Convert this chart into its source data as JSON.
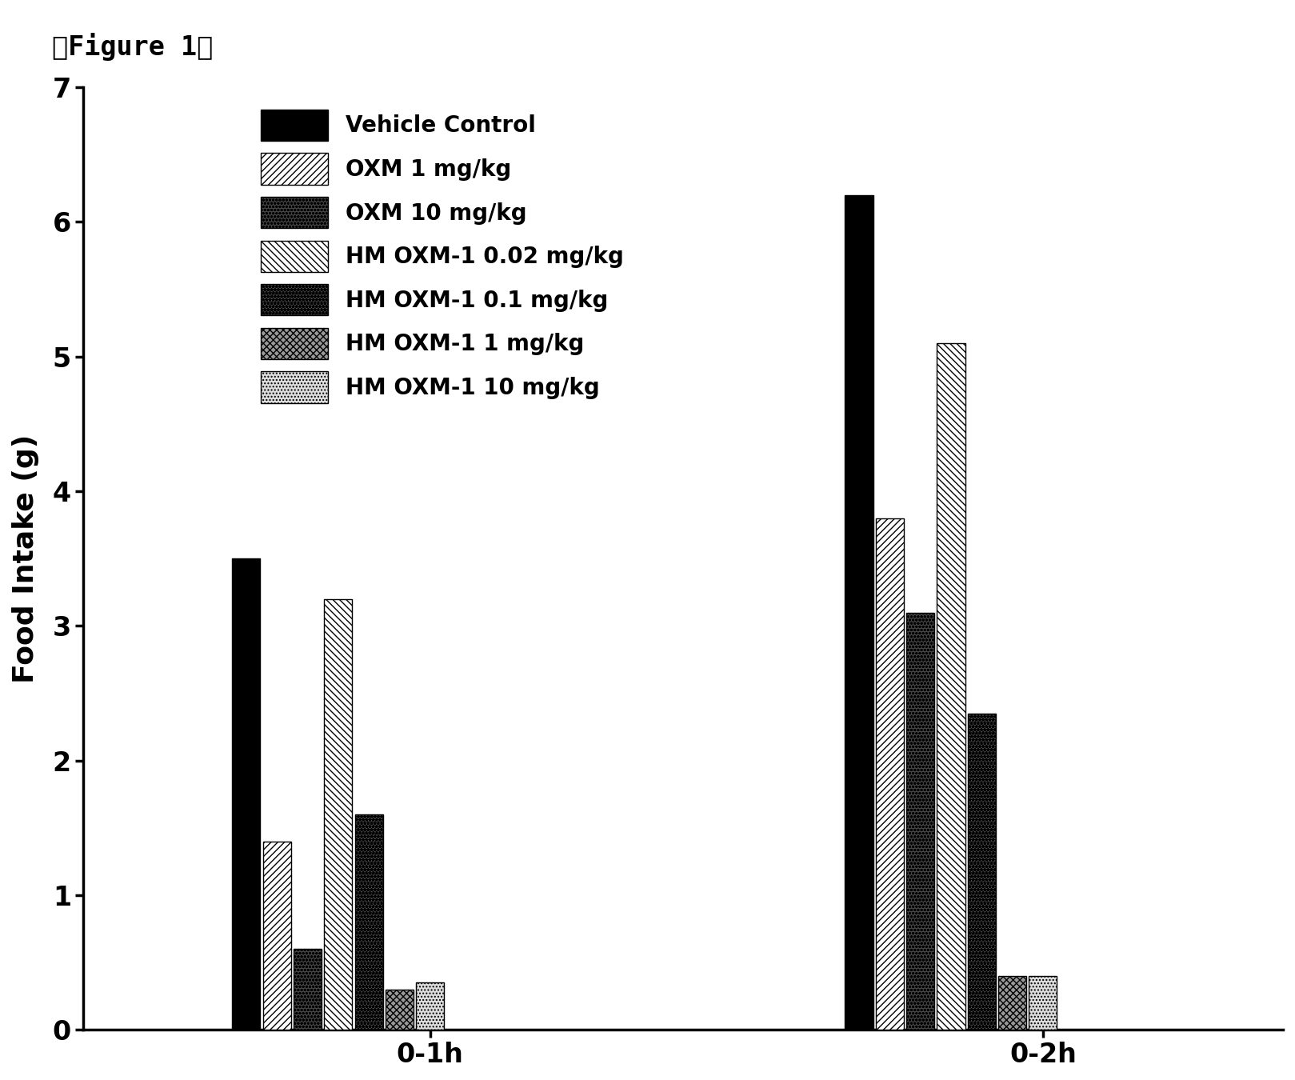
{
  "figure_label": "『Figure 1』",
  "ylabel": "Food Intake (g)",
  "groups": [
    "0-1h",
    "0-2h"
  ],
  "series": [
    {
      "label": "Vehicle Control",
      "hatch": "",
      "facecolor": "#000000",
      "edgecolor": "#000000",
      "values": [
        3.5,
        6.2
      ]
    },
    {
      "label": "OXM 1 mg/kg",
      "hatch": "////",
      "facecolor": "#ffffff",
      "edgecolor": "#000000",
      "values": [
        1.4,
        3.8
      ]
    },
    {
      "label": "OXM 10 mg/kg",
      "hatch": "oooo",
      "facecolor": "#444444",
      "edgecolor": "#000000",
      "values": [
        0.6,
        3.1
      ]
    },
    {
      "label": "HM OXM-1 0.02 mg/kg",
      "hatch": "\\\\\\\\",
      "facecolor": "#ffffff",
      "edgecolor": "#000000",
      "values": [
        3.2,
        5.1
      ]
    },
    {
      "label": "HM OXM-1 0.1 mg/kg",
      "hatch": "****",
      "facecolor": "#555555",
      "edgecolor": "#000000",
      "values": [
        1.6,
        2.35
      ]
    },
    {
      "label": "HM OXM-1 1 mg/kg",
      "hatch": "xxxx",
      "facecolor": "#999999",
      "edgecolor": "#000000",
      "values": [
        0.3,
        0.4
      ]
    },
    {
      "label": "HM OXM-1 10 mg/kg",
      "hatch": "....",
      "facecolor": "#dddddd",
      "edgecolor": "#000000",
      "values": [
        0.35,
        0.4
      ]
    }
  ],
  "ylim": [
    0,
    7
  ],
  "yticks": [
    0,
    1,
    2,
    3,
    4,
    5,
    6,
    7
  ],
  "bar_width": 0.055,
  "group_centers": [
    1.0,
    2.2
  ],
  "xlim": [
    0.5,
    2.85
  ],
  "xtick_positions": [
    1.18,
    2.38
  ],
  "background_color": "#ffffff",
  "fontsize_label": 26,
  "fontsize_tick": 24,
  "fontsize_legend": 20,
  "fontsize_figure_label": 24
}
